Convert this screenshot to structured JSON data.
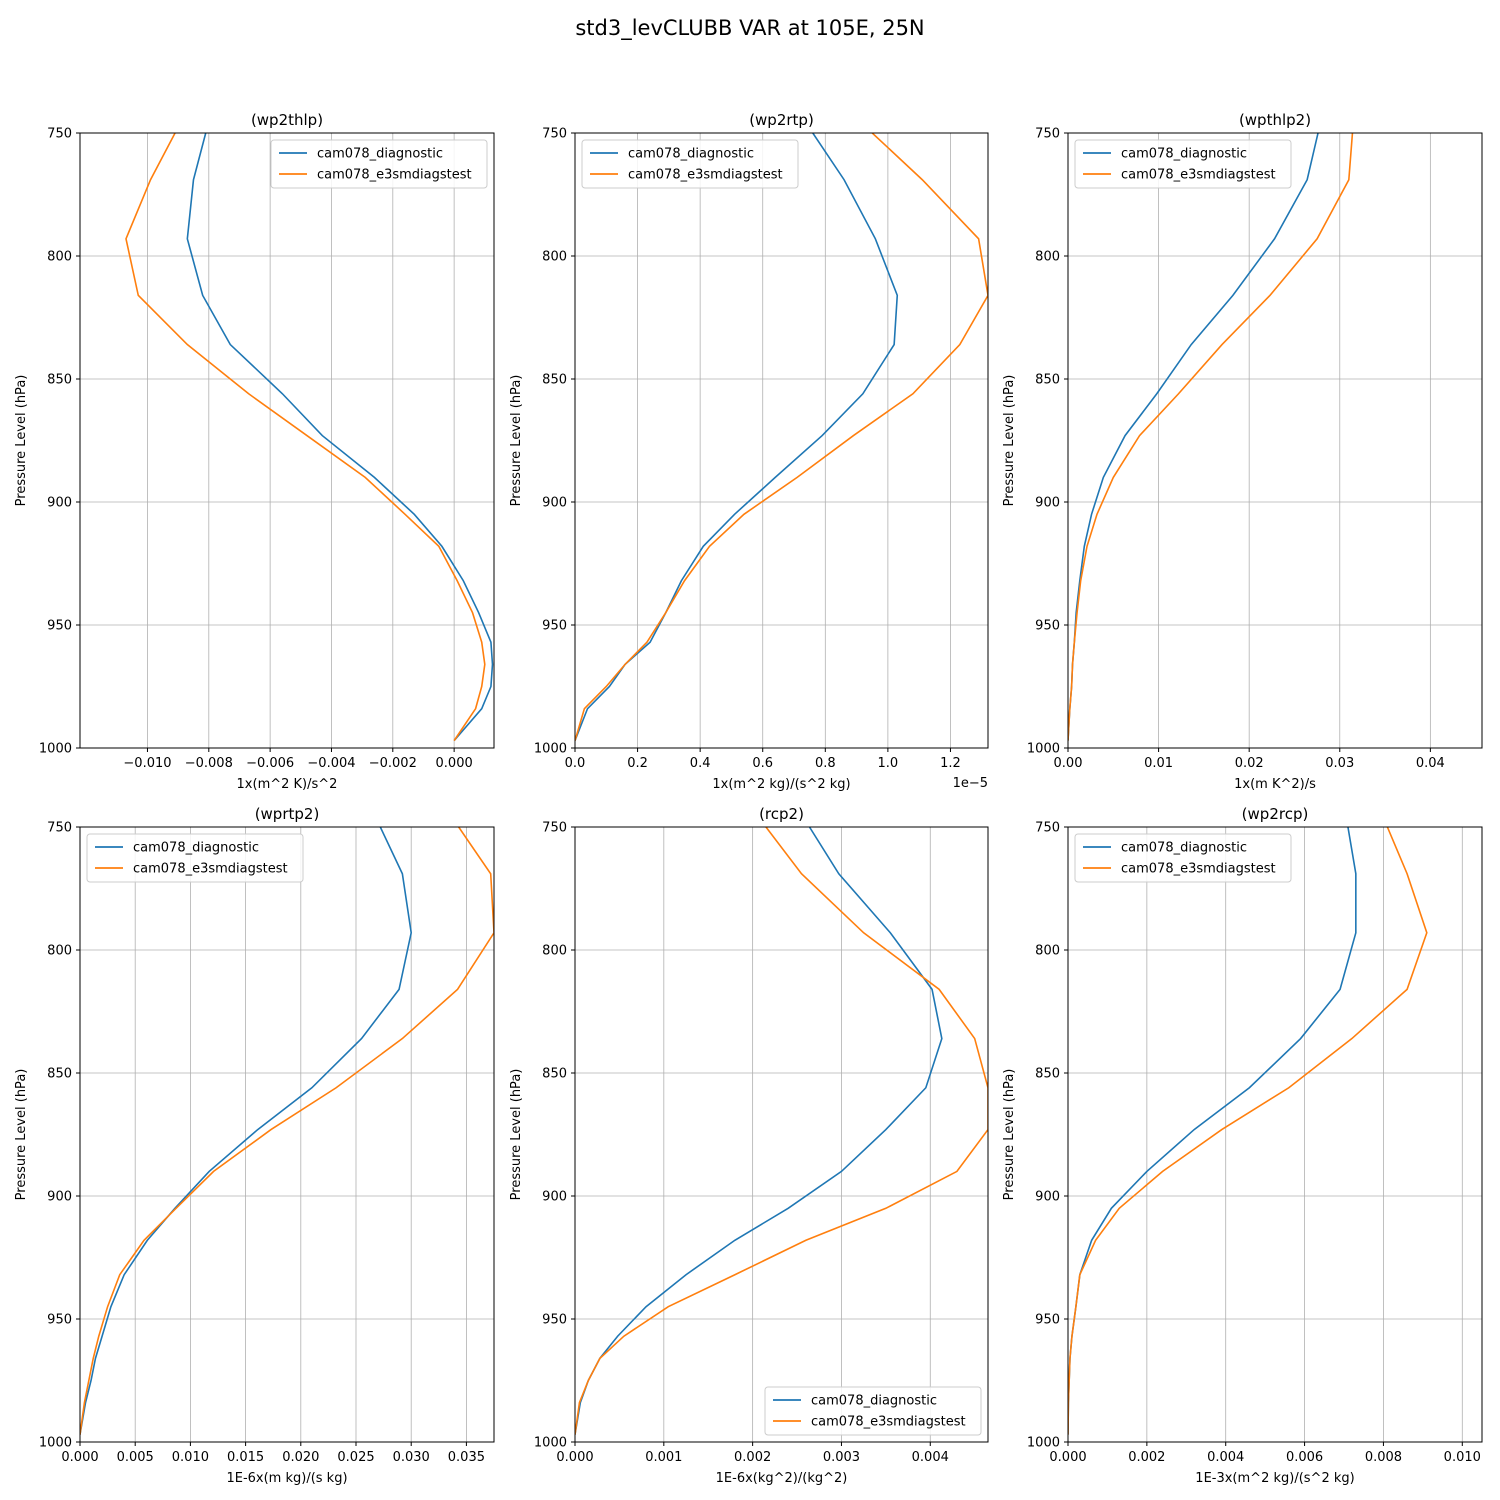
{
  "suptitle": "std3_levCLUBB VAR at 105E, 25N",
  "colors": {
    "cam078_diagnostic": "#1f77b4",
    "cam078_e3smdiagstest": "#ff7f0e",
    "grid": "#b0b0b0"
  },
  "chart_data": [
    {
      "type": "line",
      "title": "(wp2thlp)",
      "xlabel": "1x(m^2 K)/s^2",
      "ylabel": "Pressure Level (hPa)",
      "xlim": [
        -0.0122,
        0.0013
      ],
      "ylim": [
        1000,
        750
      ],
      "xticks": [
        -0.01,
        -0.008,
        -0.006,
        -0.004,
        -0.002,
        0.0
      ],
      "xtick_labels": [
        "−0.010",
        "−0.008",
        "−0.006",
        "−0.004",
        "−0.002",
        "0.000"
      ],
      "yticks": [
        750,
        800,
        850,
        900,
        950,
        1000
      ],
      "ytick_labels": [
        "750",
        "800",
        "850",
        "900",
        "950",
        "1000"
      ],
      "grid": true,
      "legend_loc": "upper right",
      "series": [
        {
          "name": "cam078_diagnostic",
          "x": [
            -0.0081,
            -0.0085,
            -0.0087,
            -0.0082,
            -0.0073,
            -0.0056,
            -0.0043,
            -0.0026,
            -0.0013,
            -0.0004,
            0.0003,
            0.0008,
            0.0012,
            0.00125,
            0.0012,
            0.0009,
            0.0
          ],
          "y": [
            750,
            769,
            793,
            816,
            836,
            856,
            873,
            890,
            905,
            918,
            932,
            945,
            957,
            966,
            975,
            984,
            997
          ]
        },
        {
          "name": "cam078_e3smdiagstest",
          "x": [
            -0.0091,
            -0.0099,
            -0.0107,
            -0.0103,
            -0.0087,
            -0.0067,
            -0.0048,
            -0.0029,
            -0.0016,
            -0.0005,
            0.0001,
            0.0006,
            0.0009,
            0.001,
            0.0009,
            0.0007,
            0.0
          ],
          "y": [
            750,
            769,
            793,
            816,
            836,
            856,
            873,
            890,
            905,
            918,
            932,
            945,
            957,
            966,
            975,
            984,
            997
          ]
        }
      ]
    },
    {
      "type": "line",
      "title": "(wp2rtp)",
      "xlabel": "1x(m^2 kg)/(s^2 kg)",
      "x_offset_label": "1e−5",
      "ylabel": "Pressure Level (hPa)",
      "xlim": [
        0.0,
        1.32
      ],
      "ylim": [
        1000,
        750
      ],
      "xticks": [
        0.0,
        0.2,
        0.4,
        0.6,
        0.8,
        1.0,
        1.2
      ],
      "xtick_labels": [
        "0.0",
        "0.2",
        "0.4",
        "0.6",
        "0.8",
        "1.0",
        "1.2"
      ],
      "yticks": [
        750,
        800,
        850,
        900,
        950,
        1000
      ],
      "ytick_labels": [
        "750",
        "800",
        "850",
        "900",
        "950",
        "1000"
      ],
      "grid": true,
      "legend_loc": "upper left",
      "series": [
        {
          "name": "cam078_diagnostic",
          "x": [
            0.76,
            0.86,
            0.96,
            1.03,
            1.02,
            0.92,
            0.79,
            0.64,
            0.51,
            0.41,
            0.34,
            0.29,
            0.24,
            0.16,
            0.11,
            0.04,
            0.0
          ],
          "y": [
            750,
            769,
            793,
            816,
            836,
            856,
            873,
            890,
            905,
            918,
            932,
            945,
            957,
            966,
            975,
            984,
            997
          ]
        },
        {
          "name": "cam078_e3smdiagstest",
          "x": [
            0.95,
            1.11,
            1.29,
            1.32,
            1.23,
            1.08,
            0.89,
            0.71,
            0.54,
            0.43,
            0.35,
            0.29,
            0.23,
            0.16,
            0.1,
            0.03,
            0.0
          ],
          "y": [
            750,
            769,
            793,
            816,
            836,
            856,
            873,
            890,
            905,
            918,
            932,
            945,
            957,
            966,
            975,
            984,
            997
          ]
        }
      ]
    },
    {
      "type": "line",
      "title": "(wpthlp2)",
      "xlabel": "1x(m K^2)/s",
      "ylabel": "Pressure Level (hPa)",
      "xlim": [
        0.0,
        0.0457
      ],
      "ylim": [
        1000,
        750
      ],
      "xticks": [
        0.0,
        0.01,
        0.02,
        0.03,
        0.04
      ],
      "xtick_labels": [
        "0.00",
        "0.01",
        "0.02",
        "0.03",
        "0.04"
      ],
      "yticks": [
        750,
        800,
        850,
        900,
        950,
        1000
      ],
      "ytick_labels": [
        "750",
        "800",
        "850",
        "900",
        "950",
        "1000"
      ],
      "grid": true,
      "legend_loc": "upper left",
      "series": [
        {
          "name": "cam078_diagnostic",
          "x": [
            0.0276,
            0.0264,
            0.0228,
            0.0182,
            0.0136,
            0.0098,
            0.0063,
            0.0039,
            0.0026,
            0.0018,
            0.0013,
            0.0009,
            0.0007,
            0.0005,
            0.0004,
            0.0002,
            0.0
          ],
          "y": [
            750,
            769,
            793,
            816,
            836,
            856,
            873,
            890,
            905,
            918,
            932,
            945,
            957,
            966,
            975,
            984,
            997
          ]
        },
        {
          "name": "cam078_e3smdiagstest",
          "x": [
            0.0314,
            0.031,
            0.0275,
            0.0223,
            0.017,
            0.0122,
            0.0079,
            0.005,
            0.0032,
            0.0021,
            0.0014,
            0.001,
            0.0007,
            0.0005,
            0.0004,
            0.0002,
            0.0
          ],
          "y": [
            750,
            769,
            793,
            816,
            836,
            856,
            873,
            890,
            905,
            918,
            932,
            945,
            957,
            966,
            975,
            984,
            997
          ]
        }
      ]
    },
    {
      "type": "line",
      "title": "(wprtp2)",
      "xlabel": "1E-6x(m kg)/(s kg)",
      "ylabel": "Pressure Level (hPa)",
      "xlim": [
        0.0,
        0.0375
      ],
      "ylim": [
        1000,
        750
      ],
      "xticks": [
        0.0,
        0.005,
        0.01,
        0.015,
        0.02,
        0.025,
        0.03,
        0.035
      ],
      "xtick_labels": [
        "0.000",
        "0.005",
        "0.010",
        "0.015",
        "0.020",
        "0.025",
        "0.030",
        "0.035"
      ],
      "yticks": [
        750,
        800,
        850,
        900,
        950,
        1000
      ],
      "ytick_labels": [
        "750",
        "800",
        "850",
        "900",
        "950",
        "1000"
      ],
      "grid": true,
      "legend_loc": "upper left",
      "series": [
        {
          "name": "cam078_diagnostic",
          "x": [
            0.0272,
            0.0292,
            0.03,
            0.0289,
            0.0255,
            0.021,
            0.0161,
            0.0117,
            0.0086,
            0.0061,
            0.004,
            0.0028,
            0.002,
            0.0014,
            0.001,
            0.0005,
            0.0
          ],
          "y": [
            750,
            769,
            793,
            816,
            836,
            856,
            873,
            890,
            905,
            918,
            932,
            945,
            957,
            966,
            975,
            984,
            997
          ]
        },
        {
          "name": "cam078_e3smdiagstest",
          "x": [
            0.0343,
            0.0372,
            0.0375,
            0.0342,
            0.0292,
            0.0232,
            0.0173,
            0.0121,
            0.0087,
            0.0058,
            0.0036,
            0.0025,
            0.0017,
            0.0012,
            0.0008,
            0.0004,
            0.0
          ],
          "y": [
            750,
            769,
            793,
            816,
            836,
            856,
            873,
            890,
            905,
            918,
            932,
            945,
            957,
            966,
            975,
            984,
            997
          ]
        }
      ]
    },
    {
      "type": "line",
      "title": "(rcp2)",
      "xlabel": "1E-6x(kg^2)/(kg^2)",
      "ylabel": "Pressure Level (hPa)",
      "xlim": [
        0.0,
        0.00465
      ],
      "ylim": [
        1000,
        750
      ],
      "xticks": [
        0.0,
        0.001,
        0.002,
        0.003,
        0.004
      ],
      "xtick_labels": [
        "0.000",
        "0.001",
        "0.002",
        "0.003",
        "0.004"
      ],
      "yticks": [
        750,
        800,
        850,
        900,
        950,
        1000
      ],
      "ytick_labels": [
        "750",
        "800",
        "850",
        "900",
        "950",
        "1000"
      ],
      "grid": true,
      "legend_loc": "lower right",
      "series": [
        {
          "name": "cam078_diagnostic",
          "x": [
            0.00264,
            0.00297,
            0.00355,
            0.00402,
            0.00413,
            0.00395,
            0.0035,
            0.003,
            0.0024,
            0.0018,
            0.00125,
            0.0008,
            0.00048,
            0.00028,
            0.00015,
            6e-05,
            0.0
          ],
          "y": [
            750,
            769,
            793,
            816,
            836,
            856,
            873,
            890,
            905,
            918,
            932,
            945,
            957,
            966,
            975,
            984,
            997
          ]
        },
        {
          "name": "cam078_e3smdiagstest",
          "x": [
            0.00215,
            0.00255,
            0.00325,
            0.0041,
            0.0045,
            0.00465,
            0.00465,
            0.0043,
            0.0035,
            0.0026,
            0.0018,
            0.00105,
            0.00055,
            0.00028,
            0.00015,
            5e-05,
            0.0
          ],
          "y": [
            750,
            769,
            793,
            816,
            836,
            856,
            873,
            890,
            905,
            918,
            932,
            945,
            957,
            966,
            975,
            984,
            997
          ]
        }
      ]
    },
    {
      "type": "line",
      "title": "(wp2rcp)",
      "xlabel": "1E-3x(m^2 kg)/(s^2 kg)",
      "ylabel": "Pressure Level (hPa)",
      "xlim": [
        0.0,
        0.0105
      ],
      "ylim": [
        1000,
        750
      ],
      "xticks": [
        0.0,
        0.002,
        0.004,
        0.006,
        0.008,
        0.01
      ],
      "xtick_labels": [
        "0.000",
        "0.002",
        "0.004",
        "0.006",
        "0.008",
        "0.010"
      ],
      "yticks": [
        750,
        800,
        850,
        900,
        950,
        1000
      ],
      "ytick_labels": [
        "750",
        "800",
        "850",
        "900",
        "950",
        "1000"
      ],
      "grid": true,
      "legend_loc": "upper left",
      "series": [
        {
          "name": "cam078_diagnostic",
          "x": [
            0.0071,
            0.0073,
            0.0073,
            0.0069,
            0.0059,
            0.0046,
            0.0032,
            0.002,
            0.0011,
            0.0006,
            0.0003,
            0.0002,
            0.0001,
            5e-05,
            3e-05,
            1e-05,
            0.0
          ],
          "y": [
            750,
            769,
            793,
            816,
            836,
            856,
            873,
            890,
            905,
            918,
            932,
            945,
            957,
            966,
            975,
            984,
            997
          ]
        },
        {
          "name": "cam078_e3smdiagstest",
          "x": [
            0.0081,
            0.0086,
            0.0091,
            0.0086,
            0.0072,
            0.0056,
            0.0039,
            0.0024,
            0.0013,
            0.0007,
            0.0003,
            0.0002,
            0.0001,
            5e-05,
            3e-05,
            1e-05,
            0.0
          ],
          "y": [
            750,
            769,
            793,
            816,
            836,
            856,
            873,
            890,
            905,
            918,
            932,
            945,
            957,
            966,
            975,
            984,
            997
          ]
        }
      ]
    }
  ]
}
